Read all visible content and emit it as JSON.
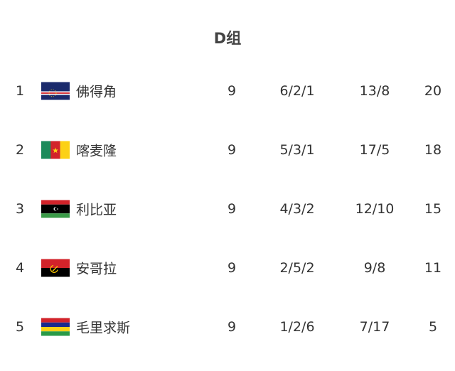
{
  "title": "D组",
  "teams": [
    {
      "rank": "1",
      "name": "佛得角",
      "flag": "cape-verde-flag",
      "played": "9",
      "record": "6/2/1",
      "goals": "13/8",
      "points": "20"
    },
    {
      "rank": "2",
      "name": "喀麦隆",
      "flag": "cameroon-flag",
      "played": "9",
      "record": "5/3/1",
      "goals": "17/5",
      "points": "18"
    },
    {
      "rank": "3",
      "name": "利比亚",
      "flag": "libya-flag",
      "played": "9",
      "record": "4/3/2",
      "goals": "12/10",
      "points": "15"
    },
    {
      "rank": "4",
      "name": "安哥拉",
      "flag": "angola-flag",
      "played": "9",
      "record": "2/5/2",
      "goals": "9/8",
      "points": "11"
    },
    {
      "rank": "5",
      "name": "毛里求斯",
      "flag": "mauritius-flag",
      "played": "9",
      "record": "1/2/6",
      "goals": "7/17",
      "points": "5"
    }
  ]
}
